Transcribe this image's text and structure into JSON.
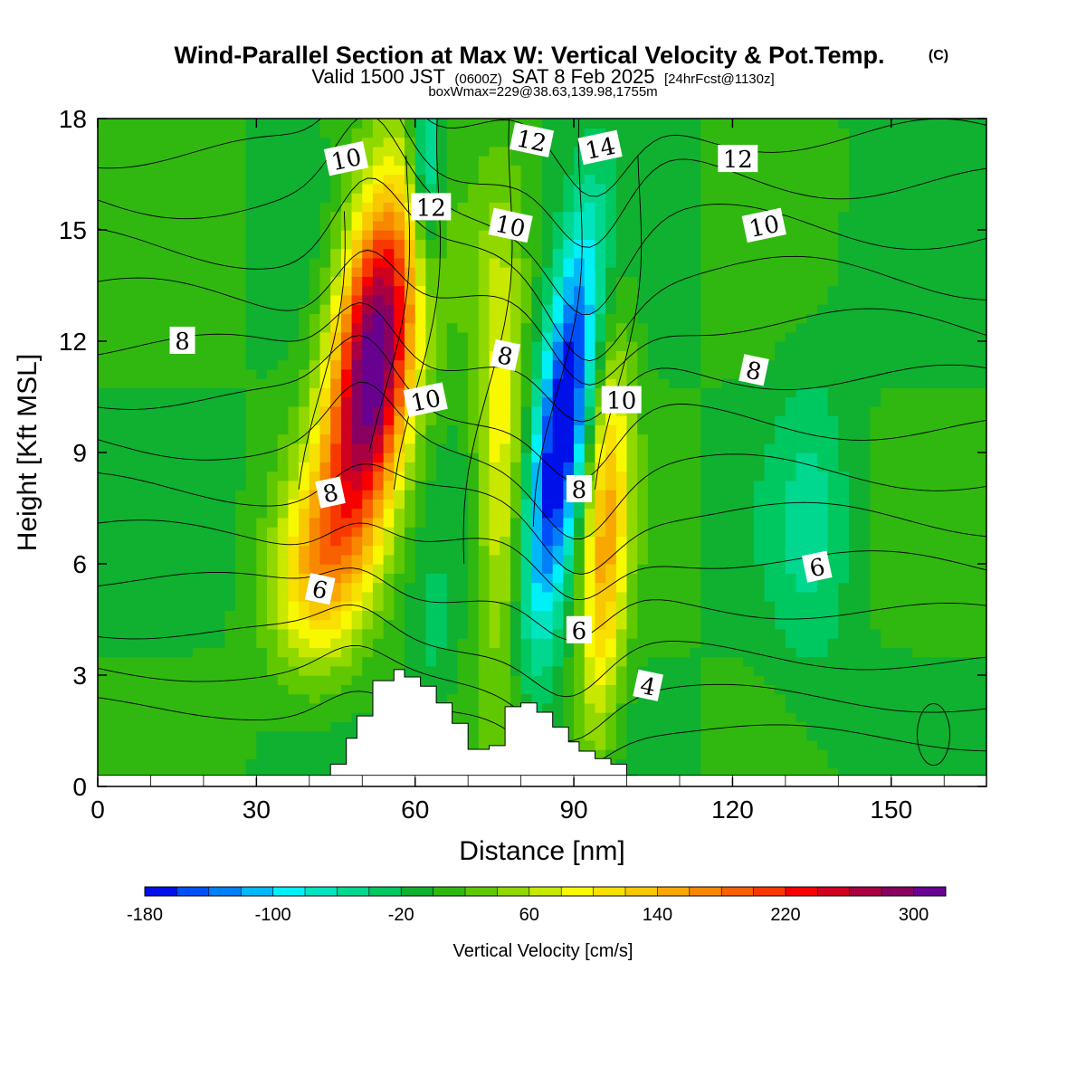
{
  "title": {
    "main": "Wind-Parallel Section at Max W: Vertical Velocity & Pot.Temp.",
    "copyright": "(C)",
    "valid_prefix": "Valid 1500 JST",
    "valid_utc": "(0600Z)",
    "valid_date": "SAT 8 Feb 2025",
    "forecast": "[24hrFcst@1130z]",
    "box_info": "boxWmax=229@38.63,139.98,1755m"
  },
  "colorbar": {
    "label": "Vertical Velocity [cm/s]",
    "tick_labels": [
      "-180",
      "-100",
      "-20",
      "60",
      "140",
      "220",
      "300"
    ],
    "colors": [
      "#0010e8",
      "#0050f8",
      "#0080f8",
      "#00b8f8",
      "#00f0f8",
      "#00e4c0",
      "#00d890",
      "#00c860",
      "#10b030",
      "#30b810",
      "#60c800",
      "#90d800",
      "#c8e800",
      "#f8f800",
      "#f8e000",
      "#f8c800",
      "#f8a800",
      "#f88800",
      "#f86000",
      "#f83800",
      "#f80000",
      "#d00020",
      "#a80040",
      "#880060",
      "#680090"
    ]
  },
  "chart_data": {
    "type": "heatmap",
    "xlabel": "Distance [nm]",
    "ylabel": "Height [Kft MSL]",
    "xlim": [
      0,
      168
    ],
    "ylim": [
      0,
      18
    ],
    "x_ticks": [
      0,
      30,
      60,
      90,
      120,
      150
    ],
    "y_ticks": [
      0,
      3,
      6,
      9,
      12,
      15,
      18
    ],
    "shaded_field": "Vertical Velocity [cm/s]",
    "shading_levels": [
      -180,
      -160,
      -140,
      -120,
      -100,
      -80,
      -60,
      -40,
      -20,
      0,
      20,
      40,
      60,
      80,
      100,
      120,
      140,
      160,
      180,
      200,
      220,
      240,
      260,
      280,
      300,
      320
    ],
    "updraft_cores": [
      {
        "x": 52,
        "y": 11.5,
        "w_max": 320
      },
      {
        "x": 98,
        "y": 7,
        "w_max": 140
      },
      {
        "x": 77,
        "y": 8,
        "w_max": 100
      }
    ],
    "downdraft_cores": [
      {
        "x": 90,
        "y": 10,
        "w_min": -180
      },
      {
        "x": 62,
        "y": 16,
        "w_min": -90
      }
    ],
    "terrain": [
      [
        42,
        0.3
      ],
      [
        44,
        0.6
      ],
      [
        47,
        1.3
      ],
      [
        49,
        1.9
      ],
      [
        52,
        2.85
      ],
      [
        56,
        3.15
      ],
      [
        58,
        2.95
      ],
      [
        61,
        2.7
      ],
      [
        64,
        2.25
      ],
      [
        67,
        1.7
      ],
      [
        70,
        1.0
      ],
      [
        74,
        1.1
      ],
      [
        77,
        2.15
      ],
      [
        80,
        2.25
      ],
      [
        83,
        2.0
      ],
      [
        86,
        1.6
      ],
      [
        89,
        1.2
      ],
      [
        91,
        0.95
      ],
      [
        94,
        0.75
      ],
      [
        97,
        0.6
      ],
      [
        100,
        0.3
      ]
    ],
    "contour_field": "Potential Temperature",
    "contour_labels": [
      {
        "text": "10",
        "x": 47,
        "y": 16.9
      },
      {
        "text": "12",
        "x": 63,
        "y": 15.6
      },
      {
        "text": "12",
        "x": 82,
        "y": 17.4
      },
      {
        "text": "14",
        "x": 95,
        "y": 17.2
      },
      {
        "text": "12",
        "x": 121,
        "y": 16.9
      },
      {
        "text": "10",
        "x": 78,
        "y": 15.1
      },
      {
        "text": "10",
        "x": 126,
        "y": 15.1
      },
      {
        "text": "8",
        "x": 16,
        "y": 12
      },
      {
        "text": "8",
        "x": 77,
        "y": 11.6
      },
      {
        "text": "10",
        "x": 62,
        "y": 10.4
      },
      {
        "text": "10",
        "x": 99,
        "y": 10.4
      },
      {
        "text": "8",
        "x": 124,
        "y": 11.2
      },
      {
        "text": "8",
        "x": 44,
        "y": 7.9
      },
      {
        "text": "8",
        "x": 91,
        "y": 8
      },
      {
        "text": "6",
        "x": 42,
        "y": 5.3
      },
      {
        "text": "6",
        "x": 136,
        "y": 5.9
      },
      {
        "text": "6",
        "x": 91,
        "y": 4.2
      },
      {
        "text": "4",
        "x": 104,
        "y": 2.7
      }
    ]
  }
}
